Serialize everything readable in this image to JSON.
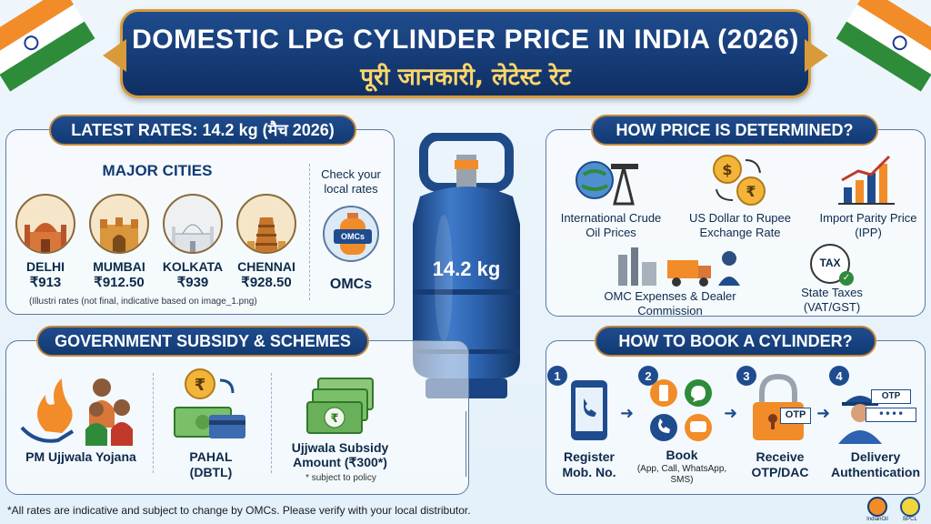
{
  "header": {
    "title": "DOMESTIC LPG CYLINDER PRICE IN INDIA (2026)",
    "subtitle": "पूरी जानकारी, लेटेस्ट रेट"
  },
  "latest_rates": {
    "heading": "LATEST RATES: 14.2 kg (मैच 2026)",
    "major_cities_label": "MAJOR CITIES",
    "cities": [
      {
        "name": "DELHI",
        "price": "₹913"
      },
      {
        "name": "MUMBAI",
        "price": "₹912.50"
      },
      {
        "name": "KOLKATA",
        "price": "₹939"
      },
      {
        "name": "CHENNAI",
        "price": "₹928.50"
      }
    ],
    "check_local": "Check your local rates",
    "omcs_badge": "OMCs",
    "omcs_label": "OMCs",
    "note": "(Illustri rates (not final, indicative based on image_1.png)"
  },
  "cylinder": {
    "label": "14.2 kg"
  },
  "price_determination": {
    "heading": "HOW PRICE IS DETERMINED?",
    "factors": [
      {
        "label": "International Crude Oil Prices",
        "icon": "crude-oil-icon"
      },
      {
        "label": "US Dollar to Rupee Exchange Rate",
        "icon": "currency-exchange-icon"
      },
      {
        "label": "Import Parity Price (IPP)",
        "icon": "bar-chart-icon"
      },
      {
        "label": "OMC Expenses & Dealer Commission",
        "icon": "refinery-truck-icon"
      },
      {
        "label": "State Taxes (VAT/GST)",
        "icon": "tax-icon",
        "badge": "TAX"
      }
    ]
  },
  "subsidy": {
    "heading": "GOVERNMENT SUBSIDY & SCHEMES",
    "items": [
      {
        "title": "PM Ujjwala Yojana",
        "icon": "flame-hands-icon"
      },
      {
        "title": "PAHAL (DBTL)",
        "icon": "cash-transfer-icon"
      },
      {
        "title": "Ujjwala Subsidy Amount (₹300*)",
        "note": "* subject to policy",
        "icon": "money-stack-icon"
      }
    ]
  },
  "booking": {
    "heading": "HOW TO BOOK A CYLINDER?",
    "steps": [
      {
        "num": "1",
        "title": "Register Mob. No.",
        "icon": "phone-icon"
      },
      {
        "num": "2",
        "title": "Book",
        "detail": "(App, Call, WhatsApp, SMS)",
        "icon": "app-call-icons"
      },
      {
        "num": "3",
        "title": "Receive OTP/DAC",
        "icon": "lock-otp-icon",
        "badge": "OTP"
      },
      {
        "num": "4",
        "title": "Delivery Authentication",
        "icon": "delivery-person-icon",
        "badge": "OTP",
        "dots": "••••"
      }
    ]
  },
  "footer": {
    "disclaimer": "*All rates are indicative and subject to change by OMCs. Please verify with your local distributor."
  },
  "logos": [
    "IndianOil",
    "BPCL"
  ],
  "colors": {
    "navy": "#123a73",
    "accent": "#d89b3a",
    "saffron": "#f28c28",
    "green": "#2e8b3a",
    "cylinder": "#2d63b0"
  }
}
